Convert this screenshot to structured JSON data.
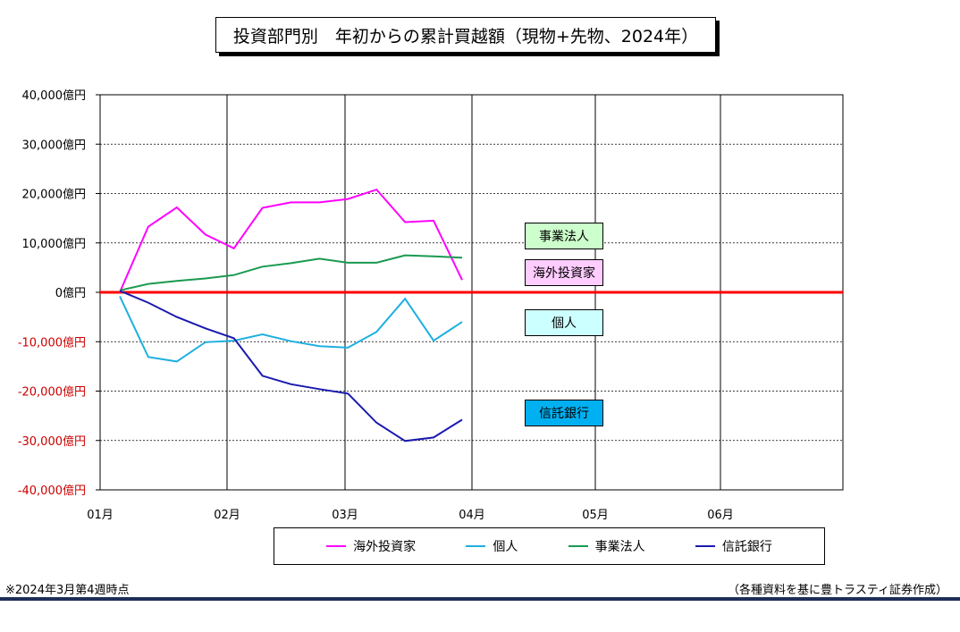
{
  "title": "投資部門別　年初からの累計買越額（現物+先物、2024年）",
  "footnote": "※2024年3月第4週時点",
  "source": "（各種資料を基に豊トラスティ証券作成）",
  "colors": {
    "海外投資家": "#ff00ff",
    "個人": "#1fb0e0",
    "事業法人": "#1a9a50",
    "信託銀行": "#1a1ab0",
    "zero_line": "#ff0000",
    "negative_tick": "#cc0000"
  },
  "labels": [
    {
      "name": "事業法人",
      "bg": "#ccffcc"
    },
    {
      "name": "海外投資家",
      "bg": "#ffccff"
    },
    {
      "name": "個人",
      "bg": "#ccffff"
    },
    {
      "name": "信託銀行",
      "bg": "#00b0f0"
    }
  ],
  "chart_data": {
    "type": "line",
    "title": "投資部門別　年初からの累計買越額（現物+先物、2024年）",
    "ylim": [
      -40000,
      40000
    ],
    "yticks": [
      40000,
      30000,
      20000,
      10000,
      0,
      -10000,
      -20000,
      -30000,
      -40000
    ],
    "ytick_labels": [
      "40,000億円",
      "30,000億円",
      "20,000億円",
      "10,000億円",
      "0億円",
      "-10,000億円",
      "-20,000億円",
      "-30,000億円",
      "-40,000億円"
    ],
    "xtick_labels": [
      "01月",
      "02月",
      "03月",
      "04月",
      "05月",
      "06月"
    ],
    "x_weeks": [
      1,
      2,
      3,
      4,
      5,
      6,
      7,
      8,
      9,
      10,
      11,
      12,
      13
    ],
    "series": [
      {
        "name": "海外投資家",
        "values": [
          0,
          13300,
          17200,
          11700,
          8900,
          17100,
          18200,
          18200,
          18900,
          20800,
          14200,
          14500,
          2500
        ]
      },
      {
        "name": "個人",
        "values": [
          -800,
          -13100,
          -14000,
          -10100,
          -9800,
          -8500,
          -9900,
          -10900,
          -11200,
          -8000,
          -1300,
          -9800,
          -6000
        ]
      },
      {
        "name": "事業法人",
        "values": [
          400,
          1700,
          2300,
          2800,
          3500,
          5200,
          5900,
          6800,
          6000,
          6000,
          7500,
          7300,
          7000
        ]
      },
      {
        "name": "信託銀行",
        "values": [
          300,
          -2100,
          -5000,
          -7300,
          -9300,
          -16900,
          -18600,
          -19600,
          -20500,
          -26400,
          -30100,
          -29400,
          -25800
        ]
      }
    ],
    "legend": [
      "海外投資家",
      "個人",
      "事業法人",
      "信託銀行"
    ],
    "grid": true,
    "legend_position": "bottom"
  }
}
